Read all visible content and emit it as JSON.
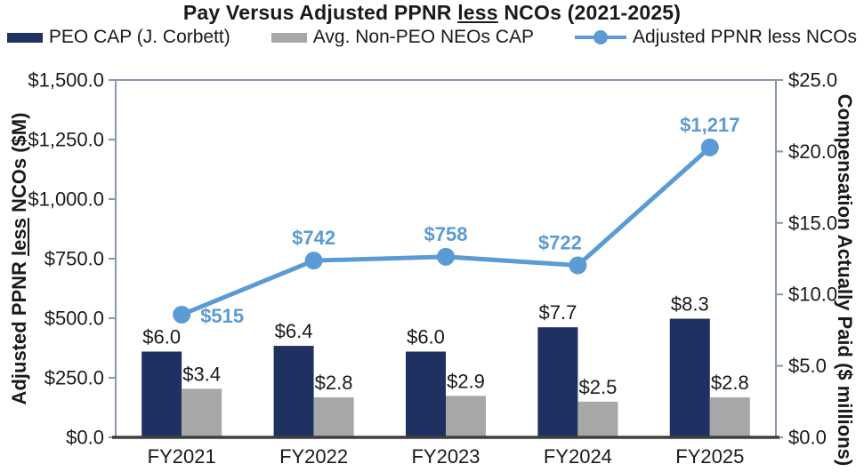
{
  "title": {
    "prefix": "Pay Versus Adjusted PPNR ",
    "underlined": "less",
    "suffix": " NCOs (2021-2025)"
  },
  "legend": {
    "items": [
      {
        "label": "PEO CAP (J. Corbett)",
        "marker": "bar-swatch",
        "color": "#1F3160"
      },
      {
        "label": "Avg. Non-PEO NEOs CAP",
        "marker": "bar-swatch",
        "color": "#A7A7A7"
      },
      {
        "label": "Adjusted PPNR less NCOs",
        "marker": "line-dot",
        "color": "#5B9BD5"
      }
    ]
  },
  "left_axis": {
    "title_prefix": "Adjusted PPNR ",
    "title_underlined": "less",
    "title_suffix": " NCOs ($M)"
  },
  "right_axis": {
    "title": "Compensation Actually Paid ($ millions)"
  },
  "colors": {
    "navy_bar": "#1F3160",
    "gray_bar": "#A7A7A7",
    "blue_line": "#5B9BD5",
    "plot_frame": "#8796AE",
    "x_axis_line": "#3F3F3F",
    "label_text": "#1A1A1A"
  },
  "chart_data": {
    "type": "bar",
    "title": "Pay Versus Adjusted PPNR less NCOs (2021-2025)",
    "categories": [
      "FY2021",
      "FY2022",
      "FY2023",
      "FY2024",
      "FY2025"
    ],
    "series": [
      {
        "name": "PEO CAP (J. Corbett)",
        "type": "bar",
        "axis": "right",
        "color": "#1F3160",
        "values": [
          6.0,
          6.4,
          6.0,
          7.7,
          8.3
        ],
        "labels": [
          "$6.0",
          "$6.4",
          "$6.0",
          "$7.7",
          "$8.3"
        ]
      },
      {
        "name": "Avg. Non-PEO NEOs CAP",
        "type": "bar",
        "axis": "right",
        "color": "#A7A7A7",
        "values": [
          3.4,
          2.8,
          2.9,
          2.5,
          2.8
        ],
        "labels": [
          "$3.4",
          "$2.8",
          "$2.9",
          "$2.5",
          "$2.8"
        ]
      },
      {
        "name": "Adjusted PPNR less NCOs",
        "type": "line",
        "axis": "left",
        "color": "#5B9BD5",
        "values": [
          515,
          742,
          758,
          722,
          1217
        ],
        "labels": [
          "$515",
          "$742",
          "$758",
          "$722",
          "$1,217"
        ]
      }
    ],
    "left_ylabel": "Adjusted PPNR less NCOs ($M)",
    "right_ylabel": "Compensation Actually Paid ($ millions)",
    "left_ylim": [
      0,
      1500
    ],
    "right_ylim": [
      0,
      25
    ],
    "left_tick_labels": [
      "$0.0",
      "$250.0",
      "$500.0",
      "$750.0",
      "$1,000.0",
      "$1,250.0",
      "$1,500.0"
    ],
    "right_tick_labels": [
      "$0.0",
      "$5.0",
      "$10.0",
      "$15.0",
      "$20.0",
      "$25.0"
    ],
    "grid": false,
    "legend_position": "top"
  }
}
